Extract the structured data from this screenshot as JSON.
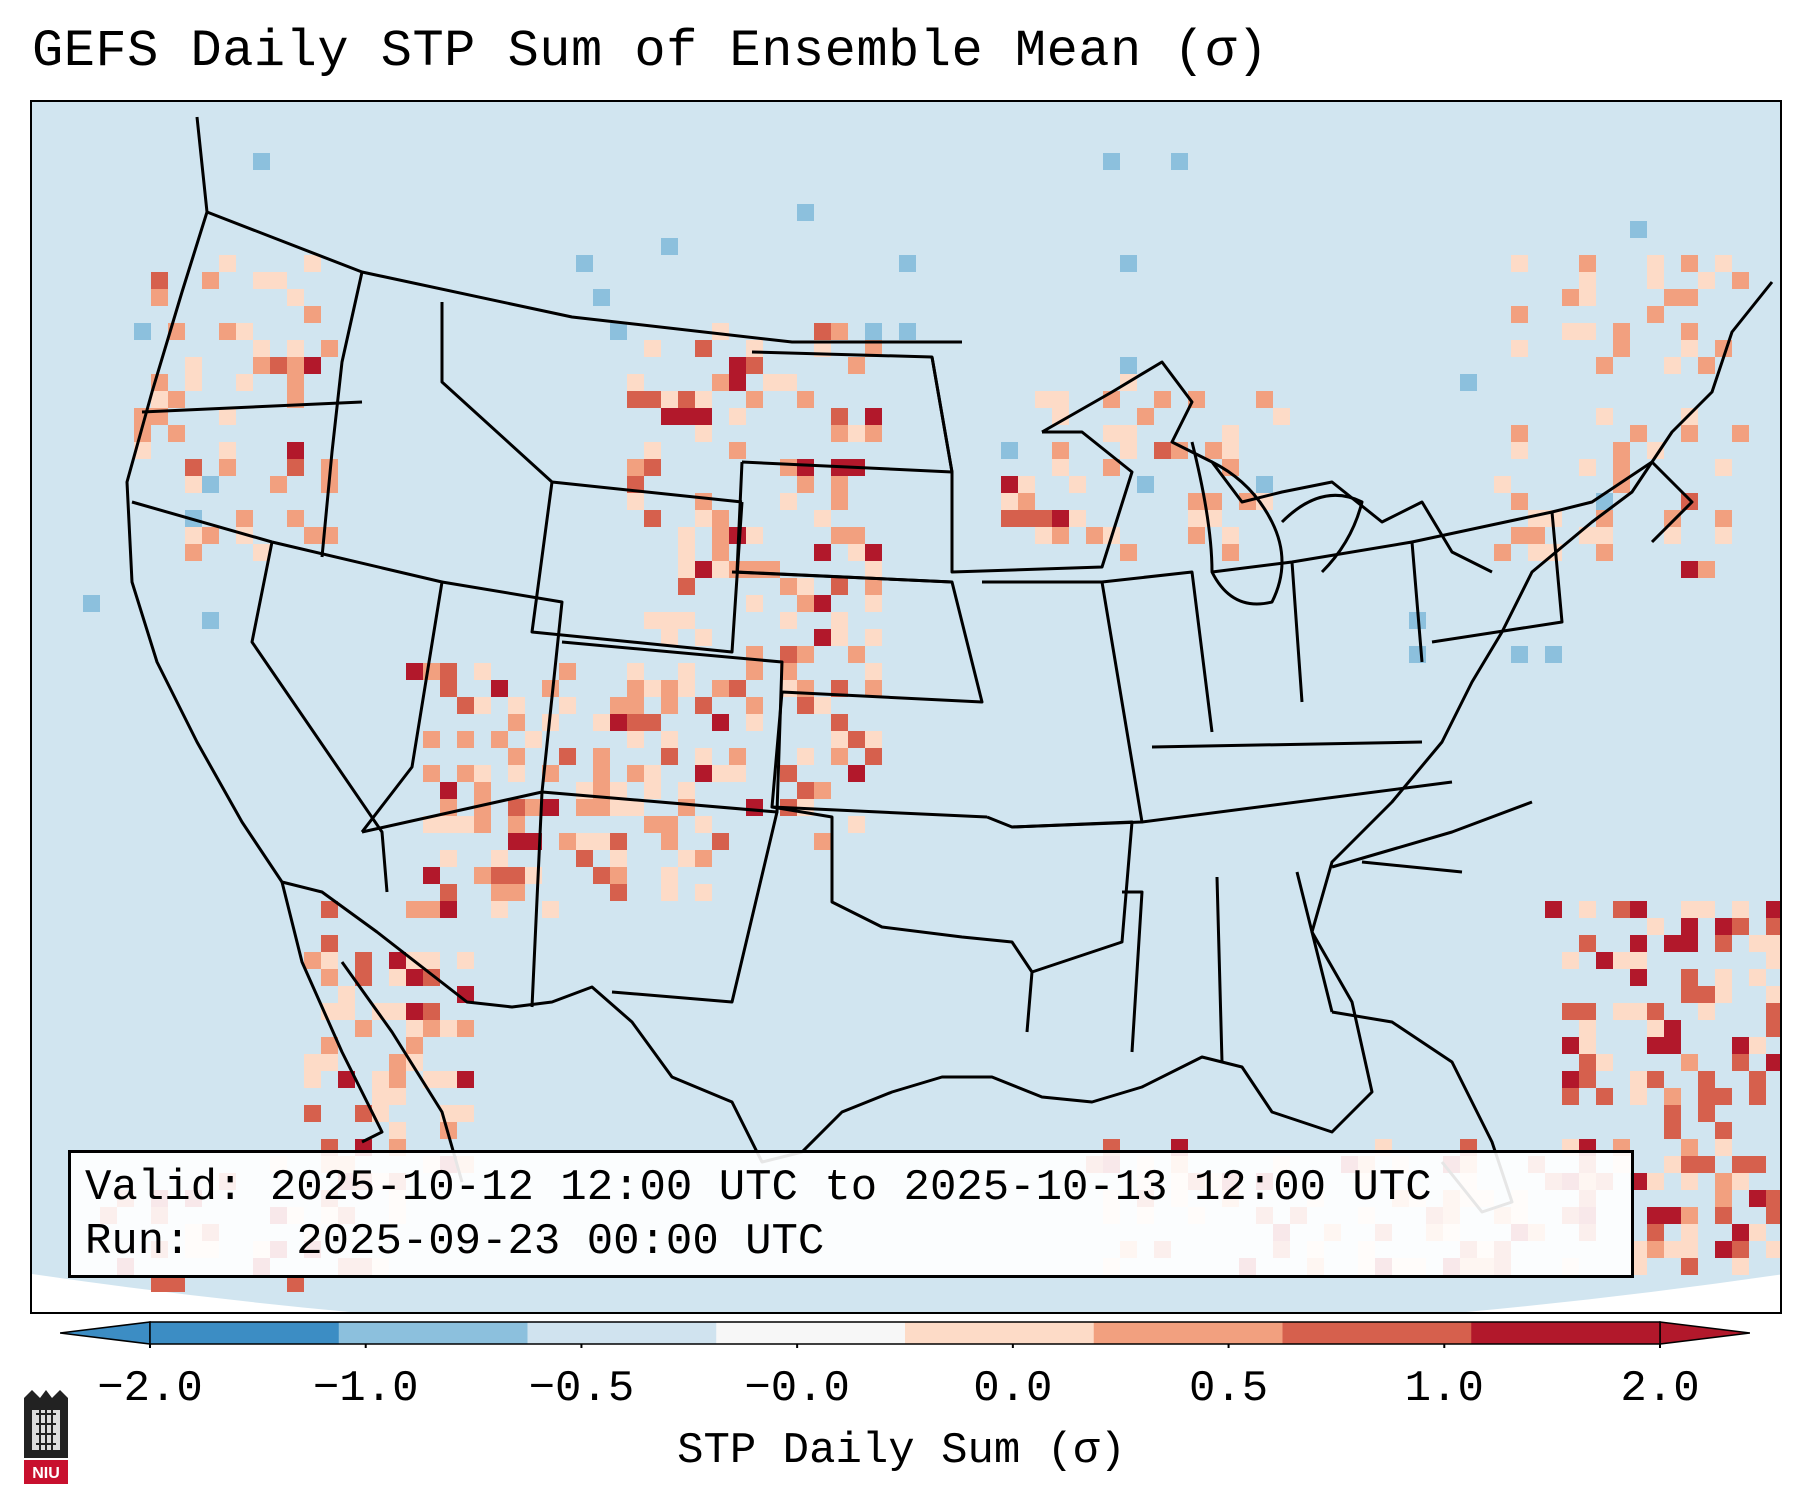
{
  "title": "GEFS Daily STP Sum of Ensemble Mean (σ)",
  "info": {
    "valid_label": "Valid:",
    "valid_value": "2025-10-12 12:00 UTC to 2025-10-13 12:00 UTC",
    "run_label": "Run:",
    "run_value": "2025-09-23 00:00 UTC"
  },
  "colorbar": {
    "label": "STP Daily Sum (σ)",
    "ticks": [
      "−2.0",
      "−1.0",
      "−0.5",
      "−0.0",
      "0.0",
      "0.5",
      "1.0",
      "2.0"
    ],
    "colors": [
      "#3c8dc4",
      "#8cc0dd",
      "#d0e3ef",
      "#f7f7f7",
      "#fddbc7",
      "#f2a07f",
      "#d6604d",
      "#b2182b"
    ]
  },
  "map": {
    "projection": "Lambert conformal, CONUS",
    "background_color": "#d1e5f0",
    "state_line_color": "#000000"
  },
  "logo": {
    "text": "NIU"
  }
}
